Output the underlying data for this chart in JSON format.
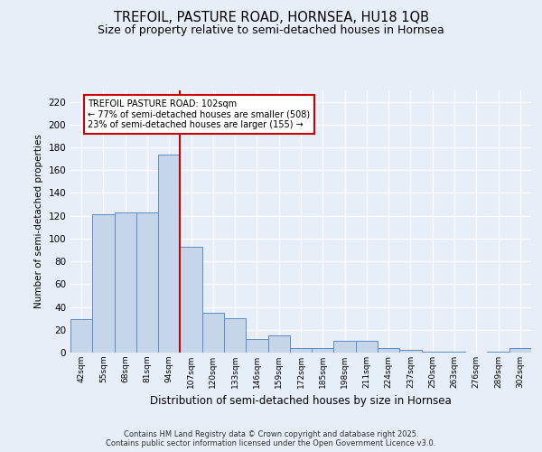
{
  "title": "TREFOIL, PASTURE ROAD, HORNSEA, HU18 1QB",
  "subtitle": "Size of property relative to semi-detached houses in Hornsea",
  "xlabel": "Distribution of semi-detached houses by size in Hornsea",
  "ylabel": "Number of semi-detached properties",
  "categories": [
    "42sqm",
    "55sqm",
    "68sqm",
    "81sqm",
    "94sqm",
    "107sqm",
    "120sqm",
    "133sqm",
    "146sqm",
    "159sqm",
    "172sqm",
    "185sqm",
    "198sqm",
    "211sqm",
    "224sqm",
    "237sqm",
    "250sqm",
    "263sqm",
    "276sqm",
    "289sqm",
    "302sqm"
  ],
  "values": [
    29,
    121,
    123,
    123,
    174,
    93,
    35,
    30,
    12,
    15,
    4,
    4,
    10,
    10,
    4,
    2,
    1,
    1,
    0,
    1,
    4
  ],
  "bar_color": "#c5d6ea",
  "bar_edge_color": "#5b8dc8",
  "vline_color": "#cc0000",
  "annotation_title": "TREFOIL PASTURE ROAD: 102sqm",
  "annotation_line1": "← 77% of semi-detached houses are smaller (508)",
  "annotation_line2": "23% of semi-detached houses are larger (155) →",
  "annotation_box_color": "#cc0000",
  "ylim": [
    0,
    230
  ],
  "yticks": [
    0,
    20,
    40,
    60,
    80,
    100,
    120,
    140,
    160,
    180,
    200,
    220
  ],
  "footnote1": "Contains HM Land Registry data © Crown copyright and database right 2025.",
  "footnote2": "Contains public sector information licensed under the Open Government Licence v3.0.",
  "background_color": "#e8eef8",
  "plot_background": "#e8eef8",
  "grid_color": "#ffffff",
  "title_fontsize": 10.5,
  "subtitle_fontsize": 9
}
